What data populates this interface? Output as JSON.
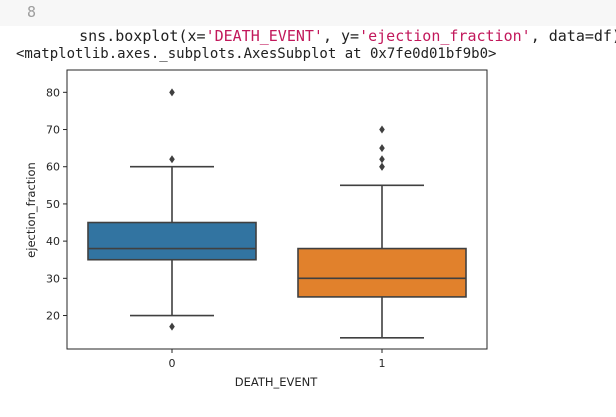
{
  "cell": {
    "line_number": "8",
    "code_parts": [
      {
        "text": "sns.boxplot(x=",
        "kind": "plain"
      },
      {
        "text": "'DEATH_EVENT'",
        "kind": "str"
      },
      {
        "text": ", y=",
        "kind": "plain"
      },
      {
        "text": "'ejection_fraction'",
        "kind": "str"
      },
      {
        "text": ", data=df)",
        "kind": "plain"
      }
    ]
  },
  "output_repr": "<matplotlib.axes._subplots.AxesSubplot at 0x7fe0d01bf9b0>",
  "chart_data": {
    "type": "box",
    "xlabel": "DEATH_EVENT",
    "ylabel": "ejection_fraction",
    "categories": [
      "0",
      "1"
    ],
    "ylim": [
      11,
      86
    ],
    "yticks": [
      20,
      30,
      40,
      50,
      60,
      70,
      80
    ],
    "grid": false,
    "boxes": [
      {
        "category": "0",
        "color": "#3274a1",
        "whisker_low": 20,
        "q1": 35,
        "median": 38,
        "q3": 45,
        "whisker_high": 60,
        "outliers": [
          17,
          62,
          80
        ]
      },
      {
        "category": "1",
        "color": "#e1812c",
        "whisker_low": 14,
        "q1": 25,
        "median": 30,
        "q3": 38,
        "whisker_high": 55,
        "outliers": [
          60,
          60,
          62,
          65,
          70
        ]
      }
    ]
  }
}
